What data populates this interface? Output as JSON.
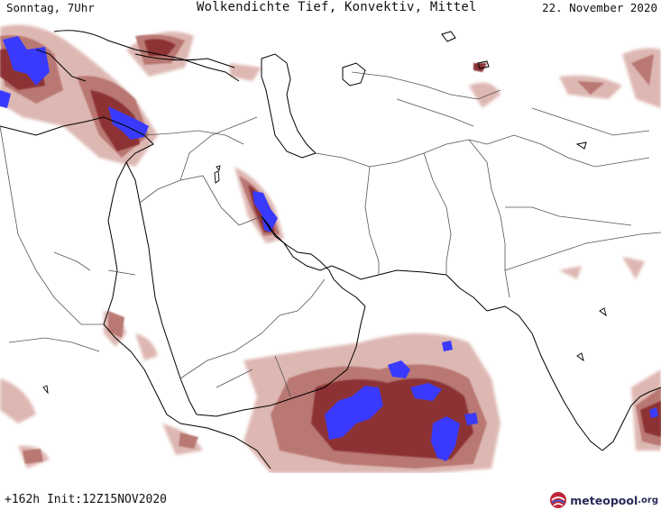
{
  "header": {
    "left": "Sonntag, 7Uhr",
    "title": "Wolkendichte  Tief, Konvektiv, Mittel",
    "right": "22. November 2020"
  },
  "footer": {
    "run": "+162h  Init:12Z15NOV2020",
    "logo_name": "meteopool",
    "logo_tld": ".org"
  },
  "colors": {
    "cloud_low": "#dcb4ae",
    "cloud_mid": "#b87470",
    "cloud_high": "#8c3234",
    "convective": "#3a3aff",
    "coastline": "#000000",
    "border": "#555555"
  },
  "map_icons": [
    "coastline",
    "borders",
    "cloud-cover"
  ]
}
